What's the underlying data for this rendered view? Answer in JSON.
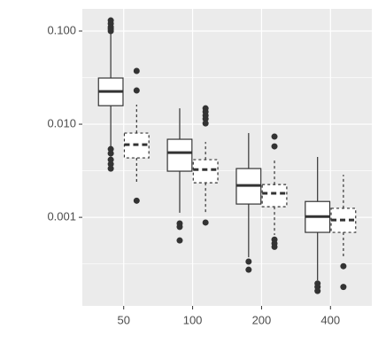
{
  "chart_data": {
    "type": "boxplot",
    "categories": [
      "50",
      "100",
      "200",
      "400"
    ],
    "series": [
      {
        "color": "#333333",
        "fill": "#ffffff",
        "linetype": "solid",
        "boxes": [
          {
            "min": 0.00578,
            "q1": 0.0158,
            "median": 0.0225,
            "q3": 0.0313,
            "max": 0.0957,
            "outliers": [
              0.13,
              0.12,
              0.11,
              0.105,
              0.1,
              0.0054,
              0.00485,
              0.00416,
              0.00373,
              0.00334
            ]
          },
          {
            "min": 0.00112,
            "q1": 0.00313,
            "median": 0.00495,
            "q3": 0.00689,
            "max": 0.0148,
            "outliers": [
              0.00086,
              0.00079,
              0.000565
            ]
          },
          {
            "min": 0.000373,
            "q1": 0.00139,
            "median": 0.0022,
            "q3": 0.00334,
            "max": 0.00803,
            "outliers": [
              0.000335,
              0.000274
            ]
          },
          {
            "min": 0.000211,
            "q1": 0.00069,
            "median": 0.00102,
            "q3": 0.00148,
            "max": 0.00445,
            "outliers": [
              0.000195,
              0.000179,
              0.000162
            ]
          }
        ]
      },
      {
        "color": "#333333",
        "fill": "#ffffff",
        "linetype": "dashed",
        "boxes": [
          {
            "min": 0.0023,
            "q1": 0.00435,
            "median": 0.00604,
            "q3": 0.00803,
            "max": 0.0162,
            "outliers": [
              0.0373,
              0.023,
              0.00151
            ]
          },
          {
            "min": 0.00112,
            "q1": 0.00235,
            "median": 0.00326,
            "q3": 0.00416,
            "max": 0.00645,
            "outliers": [
              0.0148,
              0.0136,
              0.0124,
              0.0114,
              0.0102,
              0.00088
            ]
          },
          {
            "min": 0.000646,
            "q1": 0.0013,
            "median": 0.00181,
            "q3": 0.00225,
            "max": 0.00416,
            "outliers": [
              0.00736,
              0.00578,
              0.000577,
              0.000525,
              0.000482
            ]
          },
          {
            "min": 0.000373,
            "q1": 0.00069,
            "median": 0.000936,
            "q3": 0.00125,
            "max": 0.00286,
            "outliers": [
              0.000299,
              0.000179
            ]
          }
        ]
      }
    ],
    "ylim": [
      0.000112,
      0.173
    ],
    "ylog": true,
    "yticks": [
      {
        "value": 0.001,
        "label": "0.001"
      },
      {
        "value": 0.01,
        "label": "0.010"
      },
      {
        "value": 0.1,
        "label": "0.100"
      }
    ],
    "grid": true
  }
}
